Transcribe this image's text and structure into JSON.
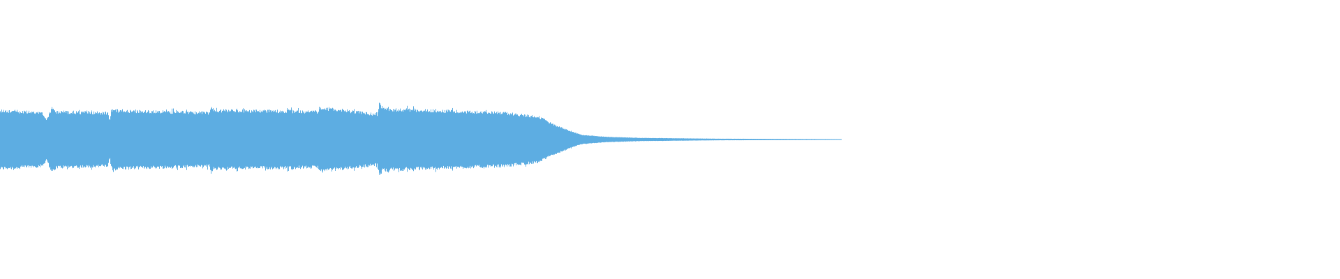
{
  "chart_data": {
    "type": "area",
    "kind": "audio-waveform",
    "color": "#5dade2",
    "background": "#ffffff",
    "axes_visible": false,
    "grid": false,
    "amplitude_range": [
      -1,
      1
    ],
    "clip_extent_fraction_of_width": 0.628,
    "envelope": [
      {
        "t": 0.0,
        "amp": 0.22
      },
      {
        "t": 0.05,
        "amp": 0.2
      },
      {
        "t": 0.055,
        "amp": 0.15
      },
      {
        "t": 0.062,
        "amp": 0.25
      },
      {
        "t": 0.066,
        "amp": 0.21
      },
      {
        "t": 0.128,
        "amp": 0.2
      },
      {
        "t": 0.13,
        "amp": 0.14
      },
      {
        "t": 0.132,
        "amp": 0.22
      },
      {
        "t": 0.248,
        "amp": 0.2
      },
      {
        "t": 0.25,
        "amp": 0.25
      },
      {
        "t": 0.254,
        "amp": 0.22
      },
      {
        "t": 0.378,
        "amp": 0.21
      },
      {
        "t": 0.38,
        "amp": 0.24
      },
      {
        "t": 0.448,
        "amp": 0.19
      },
      {
        "t": 0.45,
        "amp": 0.27
      },
      {
        "t": 0.455,
        "amp": 0.23
      },
      {
        "t": 0.6,
        "amp": 0.2
      },
      {
        "t": 0.64,
        "amp": 0.17
      },
      {
        "t": 0.655,
        "amp": 0.12
      },
      {
        "t": 0.675,
        "amp": 0.07
      },
      {
        "t": 0.69,
        "amp": 0.035
      },
      {
        "t": 0.72,
        "amp": 0.02
      },
      {
        "t": 0.76,
        "amp": 0.012
      },
      {
        "t": 0.85,
        "amp": 0.006
      },
      {
        "t": 1.0,
        "amp": 0.003
      }
    ]
  }
}
